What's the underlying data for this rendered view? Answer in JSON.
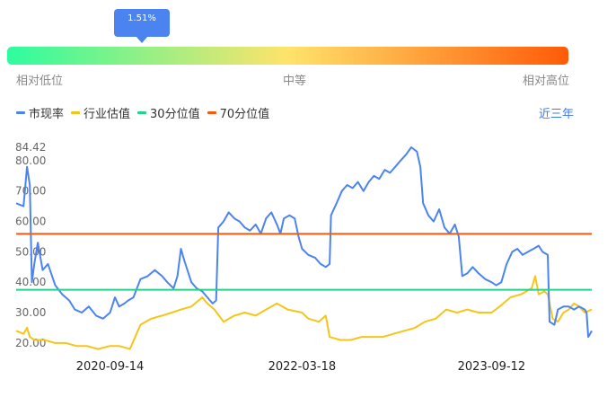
{
  "gauge": {
    "percentile_label": "1.51%",
    "percentile_value": 0.0151,
    "low_label": "相对低位",
    "mid_label": "中等",
    "high_label": "相对高位",
    "colors": [
      "#2dfc9f",
      "#ffe36a",
      "#ff5a07"
    ]
  },
  "legend": {
    "items": [
      {
        "label": "市现率",
        "color": "#4b84f0"
      },
      {
        "label": "行业估值",
        "color": "#f5c518"
      },
      {
        "label": "30分位值",
        "color": "#22d38a"
      },
      {
        "label": "70分位值",
        "color": "#f45a0e"
      }
    ],
    "period_label": "近三年"
  },
  "chart_data": {
    "type": "line",
    "ylim": [
      17,
      85
    ],
    "y_ticks": [
      "20.00",
      "30.00",
      "40.00",
      "50.00",
      "60.00",
      "70.00",
      "80.00",
      "84.42"
    ],
    "x_tick_labels": [
      "2020-09-14",
      "2022-03-18",
      "2023-09-12"
    ],
    "x_range": [
      "2019-12-20",
      "2024-06-25"
    ],
    "reference_lines": [
      {
        "name": "30分位值",
        "value": 37.5,
        "color": "#22d38a"
      },
      {
        "name": "70分位值",
        "value": 55.9,
        "color": "#f45a0e"
      }
    ],
    "series": [
      {
        "name": "市现率",
        "color": "#4b84f0",
        "points": [
          [
            "2019-12-20",
            66
          ],
          [
            "2020-01-10",
            65
          ],
          [
            "2020-01-20",
            78
          ],
          [
            "2020-01-28",
            72
          ],
          [
            "2020-02-03",
            40
          ],
          [
            "2020-02-10",
            46
          ],
          [
            "2020-02-20",
            53
          ],
          [
            "2020-03-05",
            44
          ],
          [
            "2020-03-20",
            46
          ],
          [
            "2020-04-10",
            39
          ],
          [
            "2020-04-30",
            36
          ],
          [
            "2020-05-20",
            34
          ],
          [
            "2020-06-05",
            31
          ],
          [
            "2020-06-25",
            30
          ],
          [
            "2020-07-15",
            32
          ],
          [
            "2020-08-05",
            29
          ],
          [
            "2020-08-25",
            28
          ],
          [
            "2020-09-14",
            30
          ],
          [
            "2020-09-28",
            35
          ],
          [
            "2020-10-10",
            32
          ],
          [
            "2020-10-25",
            33
          ],
          [
            "2020-11-05",
            34
          ],
          [
            "2020-11-20",
            35
          ],
          [
            "2020-12-10",
            41
          ],
          [
            "2020-12-31",
            42
          ],
          [
            "2021-01-20",
            44
          ],
          [
            "2021-02-10",
            42
          ],
          [
            "2021-02-25",
            40
          ],
          [
            "2021-03-15",
            38
          ],
          [
            "2021-03-26",
            42
          ],
          [
            "2021-04-05",
            51
          ],
          [
            "2021-04-15",
            47
          ],
          [
            "2021-05-05",
            40
          ],
          [
            "2021-05-20",
            38
          ],
          [
            "2021-06-05",
            37
          ],
          [
            "2021-06-20",
            35
          ],
          [
            "2021-07-05",
            33
          ],
          [
            "2021-07-15",
            34
          ],
          [
            "2021-07-21",
            58
          ],
          [
            "2021-08-05",
            60
          ],
          [
            "2021-08-20",
            63
          ],
          [
            "2021-09-05",
            61
          ],
          [
            "2021-09-20",
            60
          ],
          [
            "2021-10-05",
            58
          ],
          [
            "2021-10-20",
            57
          ],
          [
            "2021-11-05",
            59
          ],
          [
            "2021-11-20",
            56
          ],
          [
            "2021-12-05",
            61
          ],
          [
            "2021-12-20",
            63
          ],
          [
            "2022-01-05",
            59
          ],
          [
            "2022-01-15",
            56
          ],
          [
            "2022-01-25",
            61
          ],
          [
            "2022-02-10",
            62
          ],
          [
            "2022-02-25",
            61
          ],
          [
            "2022-03-08",
            55
          ],
          [
            "2022-03-18",
            51
          ],
          [
            "2022-04-05",
            49
          ],
          [
            "2022-04-25",
            48
          ],
          [
            "2022-05-10",
            46
          ],
          [
            "2022-05-25",
            45
          ],
          [
            "2022-06-05",
            46
          ],
          [
            "2022-06-09",
            62
          ],
          [
            "2022-06-25",
            66
          ],
          [
            "2022-07-10",
            70
          ],
          [
            "2022-07-25",
            72
          ],
          [
            "2022-08-10",
            71
          ],
          [
            "2022-08-25",
            73
          ],
          [
            "2022-09-10",
            70
          ],
          [
            "2022-09-25",
            73
          ],
          [
            "2022-10-10",
            75
          ],
          [
            "2022-10-25",
            74
          ],
          [
            "2022-11-10",
            77
          ],
          [
            "2022-11-25",
            76
          ],
          [
            "2022-12-10",
            78
          ],
          [
            "2022-12-25",
            80
          ],
          [
            "2023-01-10",
            82
          ],
          [
            "2023-01-25",
            84.42
          ],
          [
            "2023-02-10",
            83
          ],
          [
            "2023-02-20",
            78
          ],
          [
            "2023-02-28",
            66
          ],
          [
            "2023-03-15",
            62
          ],
          [
            "2023-03-30",
            60
          ],
          [
            "2023-04-15",
            64
          ],
          [
            "2023-04-30",
            58
          ],
          [
            "2023-05-15",
            56
          ],
          [
            "2023-05-30",
            59
          ],
          [
            "2023-06-10",
            55
          ],
          [
            "2023-06-20",
            42
          ],
          [
            "2023-07-05",
            43
          ],
          [
            "2023-07-20",
            45
          ],
          [
            "2023-08-05",
            43
          ],
          [
            "2023-08-25",
            41
          ],
          [
            "2023-09-12",
            40
          ],
          [
            "2023-09-25",
            39
          ],
          [
            "2023-10-10",
            40
          ],
          [
            "2023-10-25",
            46
          ],
          [
            "2023-11-10",
            50
          ],
          [
            "2023-11-25",
            51
          ],
          [
            "2023-12-10",
            49
          ],
          [
            "2023-12-25",
            50
          ],
          [
            "2024-01-10",
            51
          ],
          [
            "2024-01-25",
            52
          ],
          [
            "2024-02-05",
            50
          ],
          [
            "2024-02-20",
            49
          ],
          [
            "2024-02-25",
            27
          ],
          [
            "2024-03-10",
            26
          ],
          [
            "2024-03-20",
            31
          ],
          [
            "2024-04-05",
            32
          ],
          [
            "2024-04-20",
            32
          ],
          [
            "2024-05-05",
            31
          ],
          [
            "2024-05-20",
            32
          ],
          [
            "2024-06-05",
            31
          ],
          [
            "2024-06-10",
            30
          ],
          [
            "2024-06-15",
            22
          ],
          [
            "2024-06-20",
            23
          ],
          [
            "2024-06-25",
            24
          ]
        ]
      },
      {
        "name": "行业估值",
        "color": "#f5c518",
        "points": [
          [
            "2019-12-20",
            24
          ],
          [
            "2020-01-10",
            23
          ],
          [
            "2020-01-20",
            25
          ],
          [
            "2020-01-28",
            22
          ],
          [
            "2020-02-10",
            21
          ],
          [
            "2020-03-10",
            21
          ],
          [
            "2020-04-10",
            20
          ],
          [
            "2020-05-10",
            20
          ],
          [
            "2020-06-10",
            19
          ],
          [
            "2020-07-10",
            19
          ],
          [
            "2020-08-10",
            18
          ],
          [
            "2020-09-14",
            19
          ],
          [
            "2020-10-10",
            19
          ],
          [
            "2020-11-10",
            18
          ],
          [
            "2020-12-10",
            26
          ],
          [
            "2021-01-10",
            28
          ],
          [
            "2021-02-10",
            29
          ],
          [
            "2021-03-10",
            30
          ],
          [
            "2021-04-05",
            31
          ],
          [
            "2021-05-05",
            32
          ],
          [
            "2021-06-05",
            35
          ],
          [
            "2021-06-20",
            33
          ],
          [
            "2021-07-10",
            31
          ],
          [
            "2021-08-05",
            27
          ],
          [
            "2021-09-05",
            29
          ],
          [
            "2021-10-05",
            30
          ],
          [
            "2021-11-05",
            29
          ],
          [
            "2021-12-05",
            31
          ],
          [
            "2022-01-05",
            33
          ],
          [
            "2022-02-05",
            31
          ],
          [
            "2022-03-18",
            30
          ],
          [
            "2022-04-05",
            28
          ],
          [
            "2022-05-05",
            27
          ],
          [
            "2022-05-25",
            29
          ],
          [
            "2022-06-05",
            22
          ],
          [
            "2022-07-05",
            21
          ],
          [
            "2022-08-05",
            21
          ],
          [
            "2022-09-05",
            22
          ],
          [
            "2022-10-05",
            22
          ],
          [
            "2022-11-05",
            22
          ],
          [
            "2022-12-05",
            23
          ],
          [
            "2023-01-05",
            24
          ],
          [
            "2023-02-05",
            25
          ],
          [
            "2023-03-05",
            27
          ],
          [
            "2023-04-05",
            28
          ],
          [
            "2023-05-05",
            31
          ],
          [
            "2023-06-05",
            30
          ],
          [
            "2023-07-05",
            31
          ],
          [
            "2023-08-05",
            30
          ],
          [
            "2023-09-12",
            30
          ],
          [
            "2023-10-05",
            32
          ],
          [
            "2023-11-05",
            35
          ],
          [
            "2023-12-05",
            36
          ],
          [
            "2024-01-05",
            38
          ],
          [
            "2024-01-15",
            42
          ],
          [
            "2024-01-25",
            36
          ],
          [
            "2024-02-10",
            37
          ],
          [
            "2024-02-20",
            36
          ],
          [
            "2024-03-05",
            28
          ],
          [
            "2024-03-20",
            27
          ],
          [
            "2024-04-05",
            30
          ],
          [
            "2024-04-20",
            31
          ],
          [
            "2024-05-05",
            33
          ],
          [
            "2024-05-20",
            32
          ],
          [
            "2024-06-05",
            30
          ],
          [
            "2024-06-25",
            31
          ]
        ]
      }
    ]
  }
}
